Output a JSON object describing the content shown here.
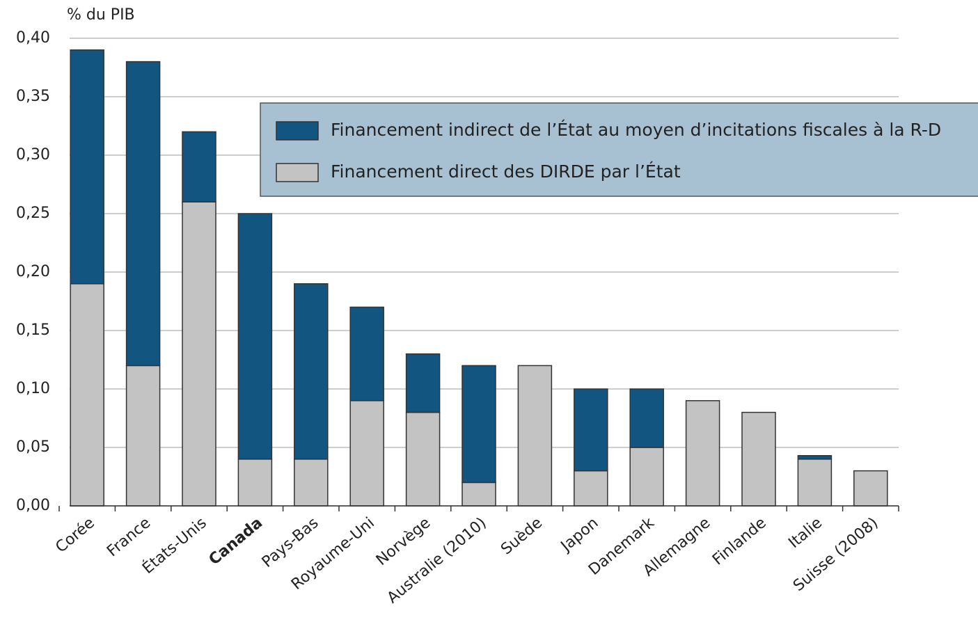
{
  "chart_data": {
    "type": "stacked_bar",
    "y_axis_label": "% du PIB",
    "categories": [
      "Corée",
      "France",
      "États-Unis",
      "Canada",
      "Pays-Bas",
      "Royaume-Uni",
      "Norvège",
      "Australie (2010)",
      "Suède",
      "Japon",
      "Danemark",
      "Allemagne",
      "Finlande",
      "Italie",
      "Suisse (2008)"
    ],
    "highlight": "Canada",
    "series": [
      {
        "name": "Financement direct des DIRDE par l’État",
        "color": "#c3c3c3",
        "values": [
          0.19,
          0.12,
          0.26,
          0.04,
          0.04,
          0.09,
          0.08,
          0.02,
          0.12,
          0.03,
          0.05,
          0.09,
          0.08,
          0.04,
          0.03
        ]
      },
      {
        "name": "Financement indirect de l’État au moyen d’incitations fiscales à la R-D",
        "color": "#135581",
        "values": [
          0.2,
          0.26,
          0.06,
          0.21,
          0.15,
          0.08,
          0.05,
          0.1,
          0,
          0.07,
          0.05,
          0,
          0,
          0.003,
          0
        ]
      }
    ],
    "ylim": [
      0,
      0.4
    ],
    "yticks": [
      {
        "value": 0,
        "label": "0,00"
      },
      {
        "value": 0.05,
        "label": "0,05"
      },
      {
        "value": 0.1,
        "label": "0,10"
      },
      {
        "value": 0.15,
        "label": "0,15"
      },
      {
        "value": 0.2,
        "label": "0,20"
      },
      {
        "value": 0.25,
        "label": "0,25"
      },
      {
        "value": 0.3,
        "label": "0,30"
      },
      {
        "value": 0.35,
        "label": "0,35"
      },
      {
        "value": 0.4,
        "label": "0,40"
      }
    ],
    "grid": true,
    "legend": "top-right"
  }
}
